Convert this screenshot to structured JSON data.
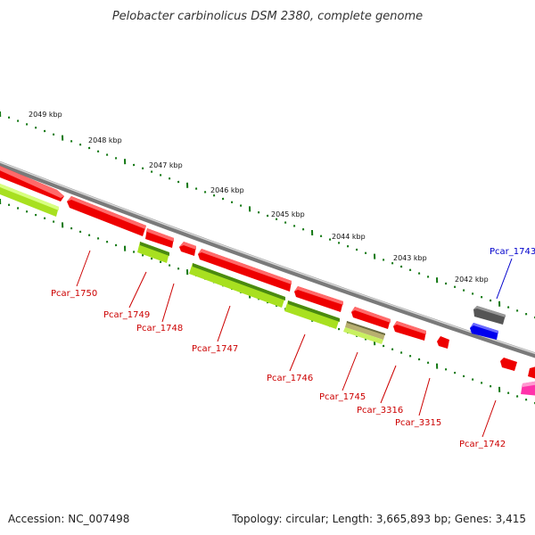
{
  "title": "Pelobacter carbinolicus DSM 2380, complete genome",
  "footer": {
    "accession": "Accession: NC_007498",
    "summary": "Topology: circular; Length: 3,665,893 bp; Genes: 3,415"
  },
  "colors": {
    "red": "#ee0000",
    "lime": "#a8e020",
    "olive": "#b8b070",
    "gray": "#555555",
    "blue": "#0000ee",
    "magenta": "#ff33aa",
    "tick": "#117711",
    "label_red": "#cc0000",
    "label_blue": "#0000cc"
  },
  "scale": {
    "unit": "kbp",
    "labels": [
      "2049 kbp",
      "2048 kbp",
      "2047 kbp",
      "2046 kbp",
      "2045 kbp",
      "2044 kbp",
      "2043 kbp",
      "2042 kbp"
    ]
  },
  "genes": [
    {
      "name": "Pcar_1750",
      "strand": "-",
      "color": "red"
    },
    {
      "name": "Pcar_1749",
      "strand": "+",
      "color": "lime"
    },
    {
      "name": "Pcar_1748",
      "strand": "+",
      "color": "red"
    },
    {
      "name": "Pcar_1747",
      "strand": "+",
      "color": "lime"
    },
    {
      "name": "Pcar_1746",
      "strand": "+",
      "color": "lime"
    },
    {
      "name": "Pcar_1745",
      "strand": "+",
      "color": "olive"
    },
    {
      "name": "Pcar_3316",
      "strand": "+",
      "color": "red"
    },
    {
      "name": "Pcar_3315",
      "strand": "+",
      "color": "red"
    },
    {
      "name": "Pcar_1743",
      "strand": "-",
      "color": "gray"
    },
    {
      "name": "Pcar_1742",
      "strand": "+",
      "color": "magenta"
    }
  ]
}
